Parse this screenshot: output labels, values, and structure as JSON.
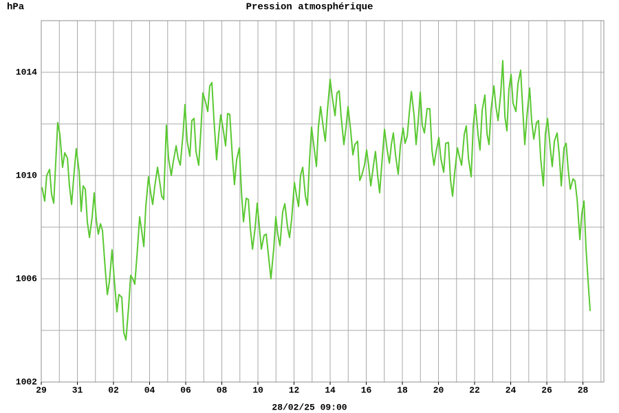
{
  "chart_data": {
    "type": "line",
    "title": "Pression atmosphérique",
    "y_label": "hPa",
    "x_caption": "28/02/25 09:00",
    "color": "#5ac832",
    "ylim": [
      1002,
      1016
    ],
    "yticks": [
      1002,
      1006,
      1010,
      1014
    ],
    "ygrid": [
      1002,
      1004,
      1006,
      1008,
      1010,
      1012,
      1014,
      1016
    ],
    "xlim": [
      0,
      31.16
    ],
    "xticks": [
      {
        "value": 0,
        "label": "29"
      },
      {
        "value": 2,
        "label": "31"
      },
      {
        "value": 4,
        "label": "02"
      },
      {
        "value": 6,
        "label": "04"
      },
      {
        "value": 8,
        "label": "06"
      },
      {
        "value": 10,
        "label": "08"
      },
      {
        "value": 12,
        "label": "10"
      },
      {
        "value": 14,
        "label": "12"
      },
      {
        "value": 16,
        "label": "14"
      },
      {
        "value": 18,
        "label": "16"
      },
      {
        "value": 20,
        "label": "18"
      },
      {
        "value": 22,
        "label": "20"
      },
      {
        "value": 24,
        "label": "22"
      },
      {
        "value": 26,
        "label": "24"
      },
      {
        "value": 28,
        "label": "26"
      },
      {
        "value": 30,
        "label": "28"
      }
    ],
    "xgrid": [
      0,
      1,
      2,
      3,
      4,
      5,
      6,
      7,
      8,
      9,
      10,
      11,
      12,
      13,
      14,
      15,
      16,
      17,
      18,
      19,
      20,
      21,
      22,
      23,
      24,
      25,
      26,
      27,
      28,
      29,
      30,
      31
    ],
    "x": [
      0.04,
      0.19,
      0.3,
      0.46,
      0.57,
      0.69,
      0.91,
      1.03,
      1.18,
      1.3,
      1.45,
      1.56,
      1.68,
      1.83,
      1.94,
      2.1,
      2.21,
      2.32,
      2.44,
      2.55,
      2.67,
      2.82,
      2.93,
      3.05,
      3.16,
      3.28,
      3.39,
      3.54,
      3.66,
      3.77,
      3.92,
      4.04,
      4.19,
      4.3,
      4.46,
      4.57,
      4.69,
      4.84,
      4.95,
      5.07,
      5.18,
      5.3,
      5.45,
      5.56,
      5.68,
      5.79,
      5.94,
      6.06,
      6.17,
      6.29,
      6.44,
      6.55,
      6.67,
      6.78,
      6.93,
      7.05,
      7.2,
      7.31,
      7.47,
      7.58,
      7.7,
      7.85,
      7.96,
      8.08,
      8.23,
      8.34,
      8.46,
      8.57,
      8.72,
      8.84,
      8.95,
      9.1,
      9.22,
      9.33,
      9.45,
      9.56,
      9.71,
      9.83,
      9.94,
      10.1,
      10.21,
      10.32,
      10.44,
      10.59,
      10.7,
      10.82,
      10.97,
      11.09,
      11.2,
      11.35,
      11.47,
      11.58,
      11.7,
      11.85,
      11.96,
      12.08,
      12.19,
      12.34,
      12.46,
      12.57,
      12.72,
      12.88,
      12.99,
      13.1,
      13.22,
      13.37,
      13.49,
      13.64,
      13.75,
      13.87,
      14.02,
      14.13,
      14.25,
      14.36,
      14.48,
      14.63,
      14.74,
      14.86,
      14.97,
      15.09,
      15.24,
      15.35,
      15.47,
      15.62,
      15.73,
      15.85,
      16.0,
      16.11,
      16.27,
      16.38,
      16.5,
      16.61,
      16.76,
      16.88,
      16.99,
      17.14,
      17.26,
      17.37,
      17.52,
      17.64,
      17.75,
      17.9,
      18.02,
      18.13,
      18.25,
      18.4,
      18.51,
      18.63,
      18.74,
      18.9,
      19.01,
      19.16,
      19.28,
      19.39,
      19.5,
      19.62,
      19.77,
      19.89,
      20.04,
      20.15,
      20.27,
      20.38,
      20.5,
      20.65,
      20.76,
      20.88,
      20.99,
      21.1,
      21.22,
      21.37,
      21.52,
      21.64,
      21.75,
      21.87,
      22.02,
      22.13,
      22.29,
      22.4,
      22.55,
      22.67,
      22.78,
      22.9,
      23.05,
      23.16,
      23.28,
      23.43,
      23.54,
      23.66,
      23.81,
      23.92,
      24.04,
      24.19,
      24.3,
      24.42,
      24.57,
      24.69,
      24.8,
      24.91,
      25.07,
      25.18,
      25.3,
      25.45,
      25.56,
      25.68,
      25.79,
      25.9,
      26.02,
      26.13,
      26.29,
      26.4,
      26.55,
      26.67,
      26.78,
      26.9,
      27.05,
      27.16,
      27.28,
      27.43,
      27.54,
      27.66,
      27.81,
      27.92,
      28.04,
      28.19,
      28.3,
      28.42,
      28.57,
      28.69,
      28.8,
      28.95,
      29.07,
      29.18,
      29.3,
      29.45,
      29.56,
      29.68,
      29.83,
      29.94,
      30.06,
      30.17,
      30.29,
      30.4
    ],
    "values": [
      1009.55,
      1009.01,
      1010.0,
      1010.24,
      1009.28,
      1008.93,
      1012.05,
      1011.6,
      1010.32,
      1010.88,
      1010.67,
      1009.6,
      1008.88,
      1010.21,
      1011.04,
      1010.13,
      1008.61,
      1009.6,
      1009.47,
      1008.21,
      1007.6,
      1008.4,
      1009.33,
      1008.27,
      1007.73,
      1008.13,
      1007.87,
      1006.4,
      1005.39,
      1005.87,
      1007.12,
      1006.0,
      1004.72,
      1005.39,
      1005.28,
      1003.92,
      1003.63,
      1004.93,
      1006.13,
      1006.0,
      1005.79,
      1006.88,
      1008.4,
      1007.87,
      1007.25,
      1008.8,
      1009.95,
      1009.33,
      1008.88,
      1009.6,
      1010.32,
      1009.81,
      1009.2,
      1009.07,
      1011.95,
      1010.67,
      1010.0,
      1010.53,
      1011.15,
      1010.67,
      1010.4,
      1011.6,
      1012.75,
      1011.33,
      1010.75,
      1012.13,
      1012.21,
      1010.93,
      1010.4,
      1011.73,
      1013.2,
      1012.85,
      1012.48,
      1013.47,
      1013.6,
      1012.21,
      1010.61,
      1011.6,
      1012.35,
      1011.68,
      1011.15,
      1012.4,
      1012.37,
      1010.67,
      1009.65,
      1010.61,
      1011.07,
      1009.33,
      1008.21,
      1009.12,
      1009.07,
      1007.95,
      1007.15,
      1008.0,
      1008.93,
      1008.0,
      1007.15,
      1007.68,
      1007.73,
      1006.99,
      1006.0,
      1007.2,
      1008.4,
      1007.73,
      1007.28,
      1008.59,
      1008.91,
      1008.0,
      1007.6,
      1008.32,
      1009.73,
      1009.25,
      1008.8,
      1010.0,
      1010.32,
      1009.2,
      1008.85,
      1010.61,
      1011.87,
      1011.2,
      1010.35,
      1011.87,
      1012.67,
      1011.87,
      1011.33,
      1012.53,
      1013.73,
      1013.07,
      1012.32,
      1013.2,
      1013.28,
      1012.27,
      1011.2,
      1011.87,
      1012.67,
      1011.73,
      1010.8,
      1011.2,
      1011.33,
      1009.81,
      1010.0,
      1010.4,
      1010.99,
      1010.4,
      1009.6,
      1010.4,
      1010.93,
      1010.0,
      1009.33,
      1010.8,
      1011.79,
      1010.99,
      1010.48,
      1011.2,
      1011.65,
      1010.8,
      1010.05,
      1011.15,
      1011.84,
      1011.25,
      1011.52,
      1012.4,
      1013.25,
      1012.32,
      1011.2,
      1012.13,
      1013.23,
      1011.95,
      1011.65,
      1012.59,
      1012.59,
      1010.99,
      1010.4,
      1010.93,
      1011.47,
      1010.67,
      1010.13,
      1011.25,
      1011.28,
      1009.81,
      1009.2,
      1010.13,
      1011.07,
      1010.72,
      1010.4,
      1011.6,
      1011.92,
      1010.67,
      1009.95,
      1011.87,
      1012.75,
      1011.6,
      1010.99,
      1012.53,
      1013.12,
      1011.6,
      1011.2,
      1012.53,
      1013.47,
      1012.67,
      1012.13,
      1013.2,
      1014.45,
      1012.27,
      1011.73,
      1013.33,
      1013.92,
      1012.8,
      1012.48,
      1013.55,
      1014.08,
      1012.53,
      1011.2,
      1012.32,
      1013.39,
      1012.13,
      1011.41,
      1012.05,
      1012.13,
      1010.67,
      1009.6,
      1011.6,
      1012.21,
      1011.07,
      1010.35,
      1011.33,
      1011.65,
      1010.8,
      1009.6,
      1011.07,
      1011.25,
      1010.27,
      1009.47,
      1009.87,
      1009.79,
      1009.07,
      1007.52,
      1008.53,
      1009.01,
      1007.2,
      1005.87,
      1004.75
    ]
  }
}
